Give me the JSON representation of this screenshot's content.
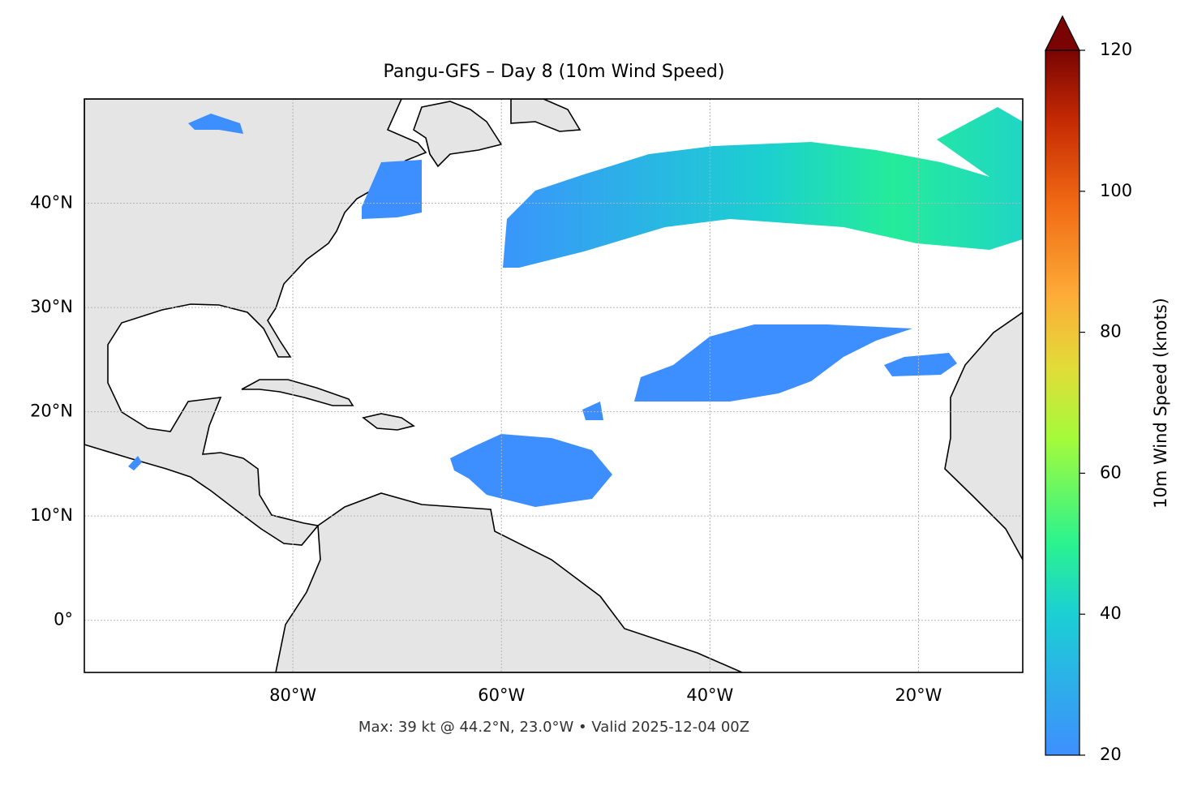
{
  "chart_data": {
    "type": "map",
    "title": "Pangu-GFS – Day 8 (10m Wind Speed)",
    "xlim": [
      -100,
      -10
    ],
    "ylim": [
      -5,
      50
    ],
    "xticks": [
      {
        "value": -80,
        "label": "80°W"
      },
      {
        "value": -60,
        "label": "60°W"
      },
      {
        "value": -40,
        "label": "40°W"
      },
      {
        "value": -20,
        "label": "20°W"
      }
    ],
    "yticks": [
      {
        "value": 0,
        "label": "0°"
      },
      {
        "value": 10,
        "label": "10°N"
      },
      {
        "value": 20,
        "label": "20°N"
      },
      {
        "value": 30,
        "label": "30°N"
      },
      {
        "value": 40,
        "label": "40°N"
      }
    ],
    "grid": true,
    "colorbar": {
      "label": "10m Wind Speed (knots)",
      "lim": [
        20,
        120
      ],
      "ticks": [
        20,
        40,
        60,
        80,
        100,
        120
      ],
      "extend": "max"
    },
    "footer": "Max: 39 kt @ 44.2°N, 23.0°W • Valid 2025-12-04 00Z"
  }
}
